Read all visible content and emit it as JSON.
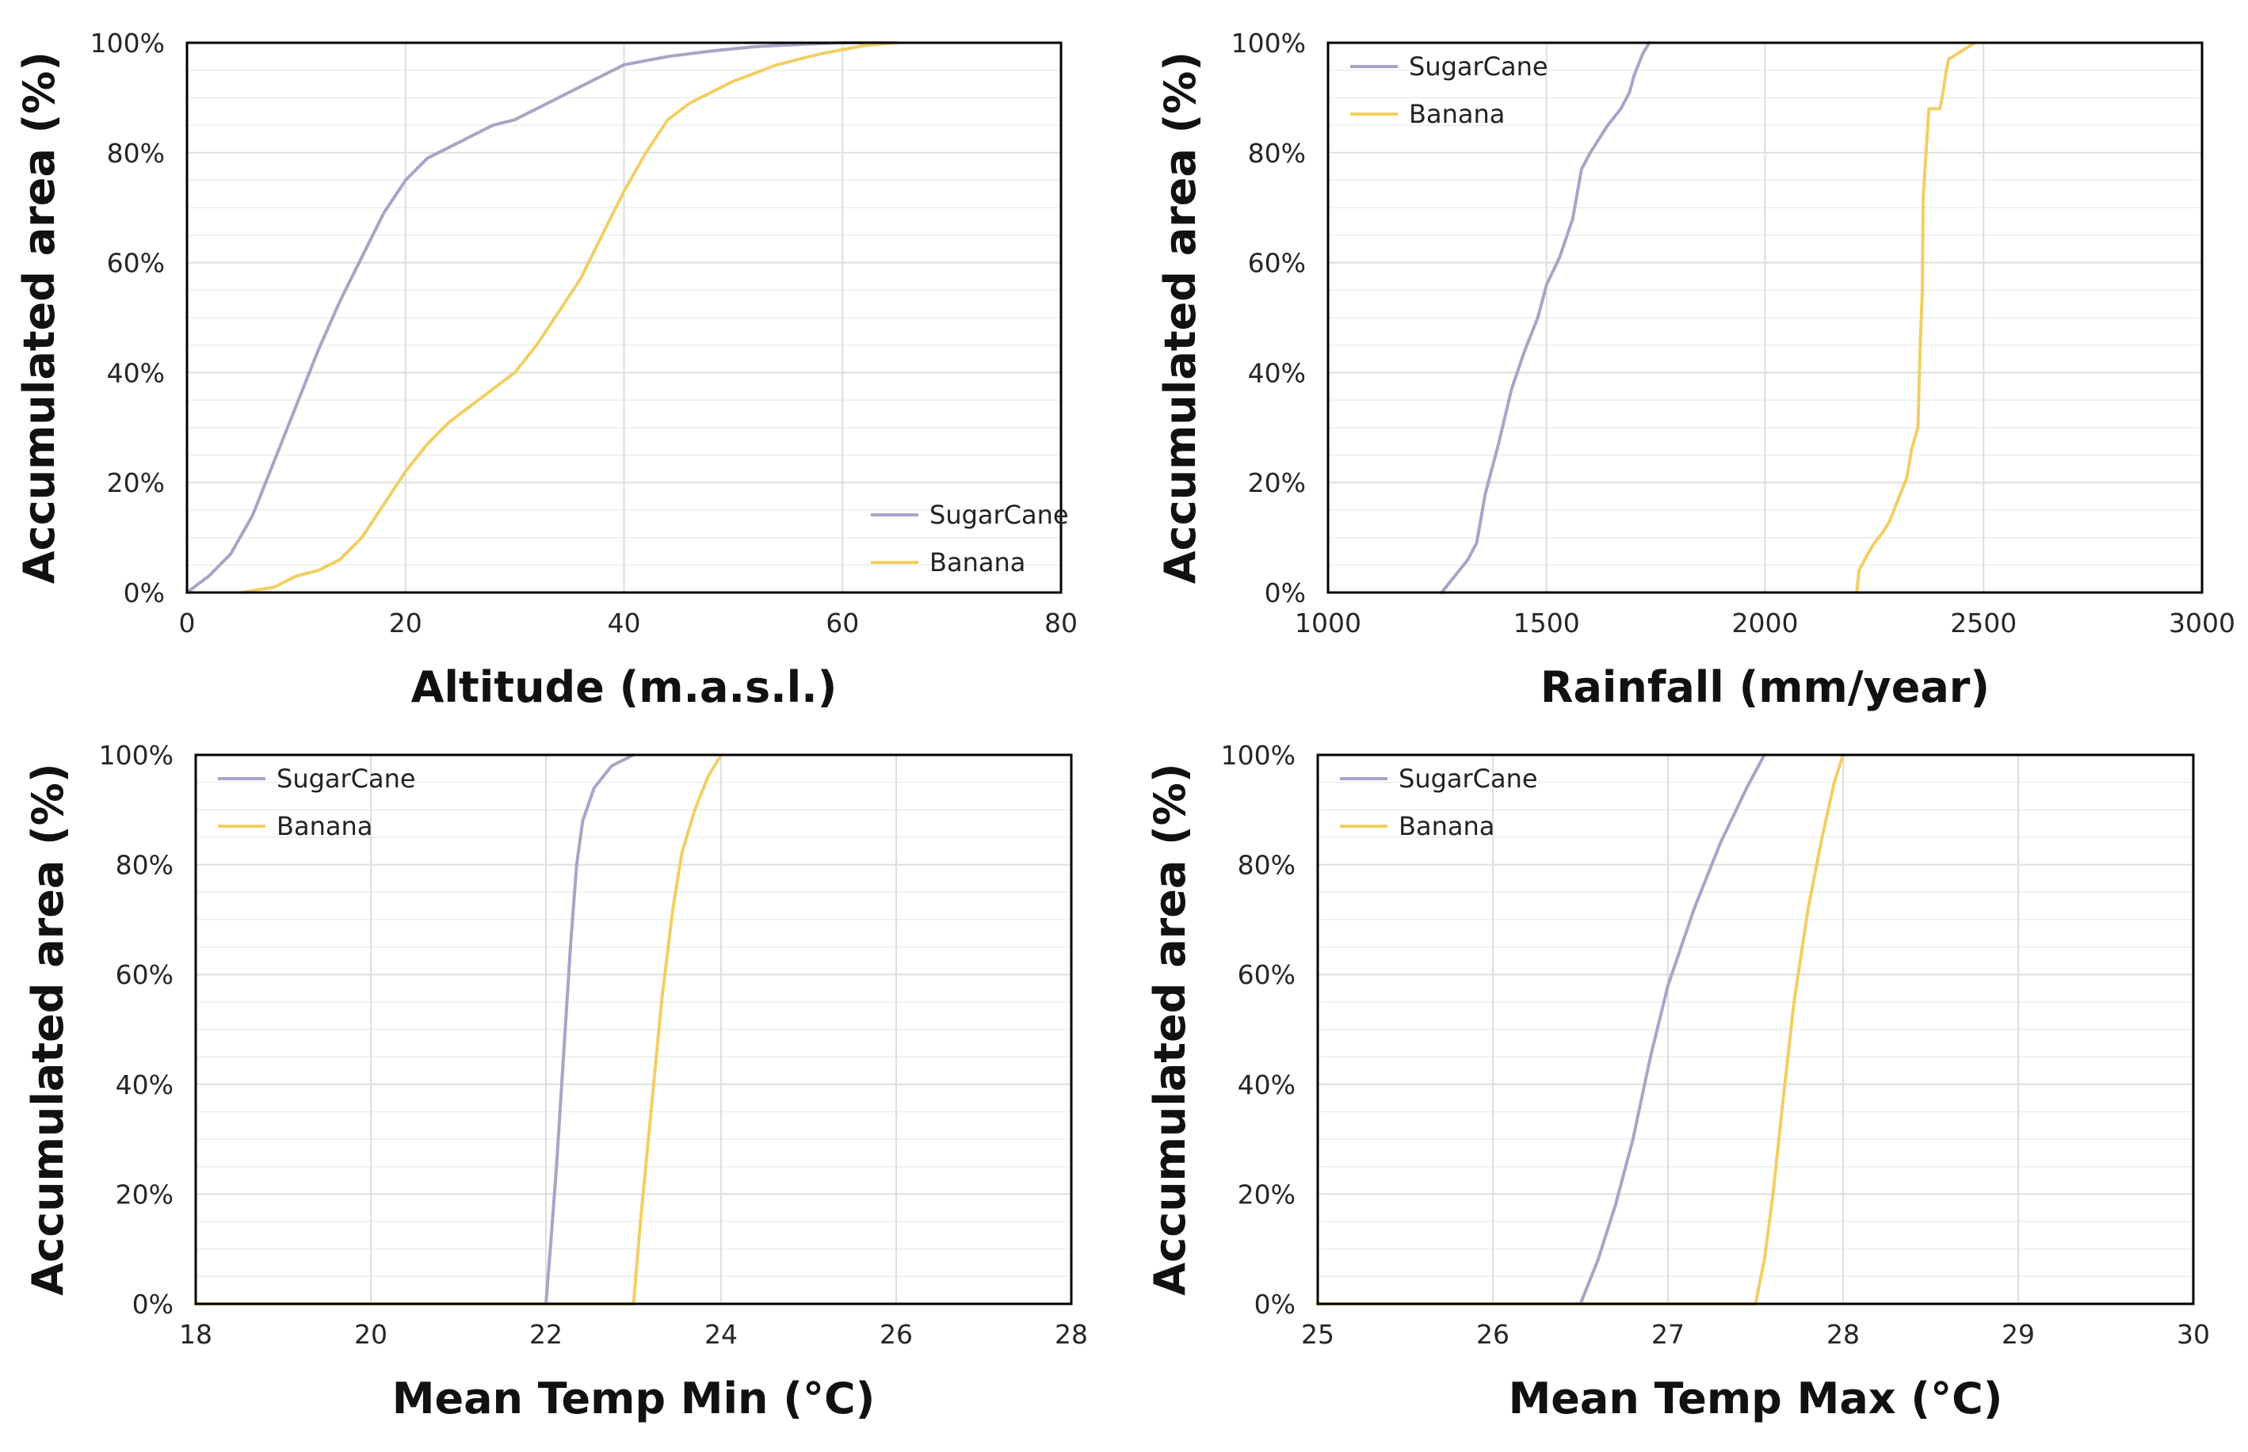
{
  "colors": {
    "sugarcane": "#a9a4c7",
    "banana": "#f2cf63",
    "grid": "#dedede",
    "axis": "#000000"
  },
  "chart_data": [
    {
      "type": "line",
      "xlabel": "Altitude (m.a.s.l.)",
      "ylabel": "Accumulated area (%)",
      "xlim": [
        0,
        80
      ],
      "xticks": [
        0,
        20,
        40,
        60,
        80
      ],
      "xtick_labels": [
        "0",
        "20",
        "40",
        "60",
        "80"
      ],
      "ylim": [
        0,
        100
      ],
      "yticks": [
        0,
        20,
        40,
        60,
        80,
        100
      ],
      "ytick_labels": [
        "0%",
        "20%",
        "40%",
        "60%",
        "80%",
        "100%"
      ],
      "legend_position": "bottom-right",
      "series": [
        {
          "name": "SugarCane",
          "color": "#a9a4c7",
          "x": [
            0,
            2,
            4,
            6,
            8,
            10,
            12,
            14,
            16,
            18,
            20,
            22,
            24,
            26,
            28,
            30,
            32,
            34,
            36,
            38,
            40,
            44,
            48,
            52,
            56,
            60,
            65
          ],
          "y": [
            0,
            3,
            7,
            14,
            24,
            34,
            44,
            53,
            61,
            69,
            75,
            79,
            81,
            83,
            85,
            86,
            88,
            90,
            92,
            94,
            96,
            97.5,
            98.5,
            99.3,
            99.7,
            100,
            100
          ]
        },
        {
          "name": "Banana",
          "color": "#f2cf63",
          "x": [
            5,
            8,
            10,
            12,
            14,
            16,
            18,
            20,
            22,
            24,
            26,
            28,
            30,
            32,
            34,
            36,
            38,
            40,
            42,
            44,
            46,
            48,
            50,
            54,
            58,
            62,
            65
          ],
          "y": [
            0,
            1,
            3,
            4,
            6,
            10,
            16,
            22,
            27,
            31,
            34,
            37,
            40,
            45,
            51,
            57,
            65,
            73,
            80,
            86,
            89,
            91,
            93,
            96,
            98,
            99.5,
            100
          ]
        }
      ]
    },
    {
      "type": "line",
      "xlabel": "Rainfall (mm/year)",
      "ylabel": "Accumulated area (%)",
      "xlim": [
        1000,
        3000
      ],
      "xticks": [
        1000,
        1500,
        2000,
        2500,
        3000
      ],
      "xtick_labels": [
        "1000",
        "1500",
        "2000",
        "2500",
        "3000"
      ],
      "ylim": [
        0,
        100
      ],
      "yticks": [
        0,
        20,
        40,
        60,
        80,
        100
      ],
      "ytick_labels": [
        "0%",
        "20%",
        "40%",
        "60%",
        "80%",
        "100%"
      ],
      "legend_position": "top-left",
      "series": [
        {
          "name": "SugarCane",
          "color": "#a9a4c7",
          "x": [
            1260,
            1290,
            1320,
            1340,
            1360,
            1390,
            1420,
            1450,
            1480,
            1500,
            1530,
            1560,
            1580,
            1600,
            1640,
            1670,
            1690,
            1700,
            1720,
            1735
          ],
          "y": [
            0,
            3,
            6,
            9,
            18,
            27,
            37,
            44,
            50,
            56,
            61,
            68,
            77,
            80,
            85,
            88,
            91,
            94,
            98,
            100
          ]
        },
        {
          "name": "Banana",
          "color": "#f2cf63",
          "x": [
            2210,
            2215,
            2235,
            2250,
            2270,
            2285,
            2300,
            2310,
            2325,
            2335,
            2350,
            2355,
            2360,
            2362,
            2375,
            2400,
            2405,
            2415,
            2420,
            2460,
            2480
          ],
          "y": [
            0,
            4,
            7,
            9,
            11,
            13,
            16,
            18,
            21,
            26,
            30,
            45,
            55,
            72,
            88,
            88,
            90,
            95,
            97,
            99,
            100
          ]
        }
      ]
    },
    {
      "type": "line",
      "xlabel": "Mean Temp Min (°C)",
      "ylabel": "Accumulated area (%)",
      "xlim": [
        18,
        28
      ],
      "xticks": [
        18,
        20,
        22,
        24,
        26,
        28
      ],
      "xtick_labels": [
        "18",
        "20",
        "22",
        "24",
        "26",
        "28"
      ],
      "ylim": [
        0,
        100
      ],
      "yticks": [
        0,
        20,
        40,
        60,
        80,
        100
      ],
      "ytick_labels": [
        "0%",
        "20%",
        "40%",
        "60%",
        "80%",
        "100%"
      ],
      "legend_position": "top-left",
      "series": [
        {
          "name": "SugarCane",
          "color": "#a9a4c7",
          "x": [
            18,
            22,
            22.05,
            22.12,
            22.2,
            22.28,
            22.35,
            22.42,
            22.55,
            22.75,
            23.0
          ],
          "y": [
            0,
            0,
            10,
            25,
            45,
            65,
            80,
            88,
            94,
            98,
            100
          ]
        },
        {
          "name": "Banana",
          "color": "#f2cf63",
          "x": [
            18,
            23,
            23.08,
            23.2,
            23.32,
            23.45,
            23.55,
            23.7,
            23.85,
            24.0
          ],
          "y": [
            0,
            0,
            15,
            35,
            55,
            72,
            82,
            90,
            96,
            100
          ]
        }
      ]
    },
    {
      "type": "line",
      "xlabel": "Mean Temp Max (°C)",
      "ylabel": "Accumulated area (%)",
      "xlim": [
        25,
        30
      ],
      "xticks": [
        25,
        26,
        27,
        28,
        29,
        30
      ],
      "xtick_labels": [
        "25",
        "26",
        "27",
        "28",
        "29",
        "30"
      ],
      "ylim": [
        0,
        100
      ],
      "yticks": [
        0,
        20,
        40,
        60,
        80,
        100
      ],
      "ytick_labels": [
        "0%",
        "20%",
        "40%",
        "60%",
        "80%",
        "100%"
      ],
      "legend_position": "top-left",
      "series": [
        {
          "name": "SugarCane",
          "color": "#a9a4c7",
          "x": [
            25,
            26.5,
            26.6,
            26.7,
            26.8,
            26.9,
            27.0,
            27.15,
            27.3,
            27.45,
            27.55
          ],
          "y": [
            0,
            0,
            8,
            18,
            30,
            45,
            58,
            72,
            84,
            94,
            100
          ]
        },
        {
          "name": "Banana",
          "color": "#f2cf63",
          "x": [
            25,
            27.5,
            27.55,
            27.6,
            27.65,
            27.72,
            27.8,
            27.88,
            27.95,
            28.0
          ],
          "y": [
            0,
            0,
            8,
            20,
            35,
            55,
            72,
            85,
            95,
            100
          ]
        }
      ]
    }
  ]
}
